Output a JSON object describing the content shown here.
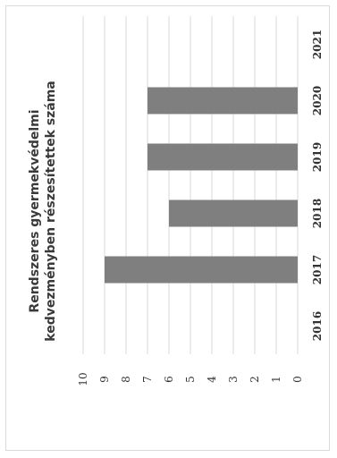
{
  "chart_data": {
    "type": "bar",
    "orientation": "vertical-bars, image rotated 90 degrees",
    "title_lines": [
      "Rendszeres gyermekvédelmi",
      "kedvezményben részesítettek száma"
    ],
    "categories": [
      "2016",
      "2017",
      "2018",
      "2019",
      "2020",
      "2021"
    ],
    "values": [
      0,
      9,
      6,
      7,
      7,
      0
    ],
    "ylim": [
      0,
      10
    ],
    "yticks": [
      "0",
      "1",
      "2",
      "3",
      "4",
      "5",
      "6",
      "7",
      "8",
      "9",
      "10"
    ],
    "grid": true,
    "legend": "none",
    "bar_color": "#7f7f7f"
  }
}
